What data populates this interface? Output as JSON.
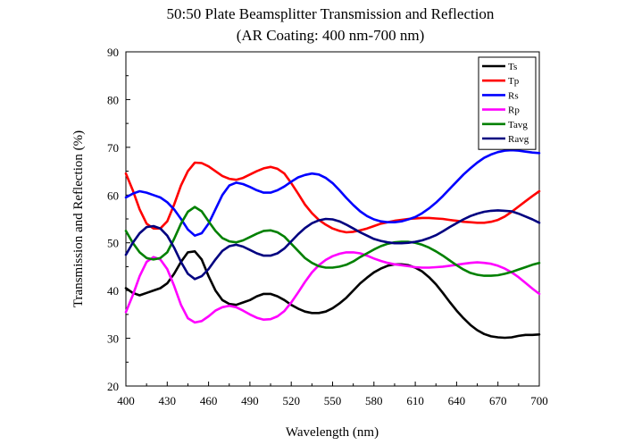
{
  "chart_data": {
    "type": "line",
    "title": "50:50 Plate Beamsplitter  Transmission and Reflection",
    "subtitle": "(AR Coating: 400 nm-700 nm)",
    "xlabel": "Wavelength (nm)",
    "ylabel": "Transmission and Reflection (%)",
    "xlim": [
      400,
      700
    ],
    "ylim": [
      20,
      90
    ],
    "xticks": [
      400,
      430,
      460,
      490,
      520,
      550,
      580,
      610,
      640,
      670,
      700
    ],
    "yticks": [
      20,
      30,
      40,
      50,
      60,
      70,
      80,
      90
    ],
    "grid": false,
    "legend_position": "top-right",
    "series": [
      {
        "name": "Ts",
        "color": "#000000",
        "x": [
          400,
          405,
          410,
          415,
          420,
          425,
          430,
          435,
          440,
          445,
          450,
          455,
          460,
          465,
          470,
          475,
          480,
          485,
          490,
          495,
          500,
          505,
          510,
          515,
          520,
          525,
          530,
          535,
          540,
          545,
          550,
          555,
          560,
          565,
          570,
          575,
          580,
          585,
          590,
          595,
          600,
          605,
          610,
          615,
          620,
          625,
          630,
          635,
          640,
          645,
          650,
          655,
          660,
          665,
          670,
          675,
          680,
          685,
          690,
          695,
          700
        ],
        "values": [
          40.5,
          39.5,
          39.0,
          39.5,
          40.0,
          40.5,
          41.5,
          43.5,
          46.0,
          48.0,
          48.2,
          46.5,
          43.0,
          40.0,
          38.0,
          37.2,
          37.0,
          37.5,
          38.0,
          38.8,
          39.3,
          39.3,
          38.8,
          38.0,
          37.0,
          36.2,
          35.6,
          35.3,
          35.3,
          35.6,
          36.3,
          37.3,
          38.5,
          40.0,
          41.5,
          42.7,
          43.8,
          44.6,
          45.2,
          45.5,
          45.5,
          45.3,
          44.8,
          44.0,
          42.8,
          41.3,
          39.5,
          37.6,
          35.8,
          34.2,
          32.8,
          31.7,
          30.9,
          30.4,
          30.2,
          30.1,
          30.2,
          30.5,
          30.7,
          30.7,
          30.8
        ]
      },
      {
        "name": "Tp",
        "color": "#ff0000",
        "x": [
          400,
          405,
          410,
          415,
          420,
          425,
          430,
          435,
          440,
          445,
          450,
          455,
          460,
          465,
          470,
          475,
          480,
          485,
          490,
          495,
          500,
          505,
          510,
          515,
          520,
          525,
          530,
          535,
          540,
          545,
          550,
          555,
          560,
          565,
          570,
          575,
          580,
          585,
          590,
          595,
          600,
          605,
          610,
          615,
          620,
          625,
          630,
          635,
          640,
          645,
          650,
          655,
          660,
          665,
          670,
          675,
          680,
          685,
          690,
          695,
          700
        ],
        "values": [
          64.5,
          61.0,
          57.0,
          54.0,
          53.0,
          53.0,
          54.5,
          58.0,
          62.0,
          65.0,
          66.8,
          66.7,
          66.0,
          65.0,
          64.0,
          63.4,
          63.2,
          63.6,
          64.3,
          65.0,
          65.6,
          65.9,
          65.5,
          64.5,
          62.5,
          60.3,
          58.0,
          56.2,
          54.8,
          53.8,
          53.0,
          52.5,
          52.2,
          52.3,
          52.6,
          53.0,
          53.5,
          54.0,
          54.3,
          54.6,
          54.8,
          55.0,
          55.1,
          55.2,
          55.2,
          55.1,
          55.0,
          54.8,
          54.6,
          54.4,
          54.3,
          54.2,
          54.2,
          54.4,
          54.8,
          55.5,
          56.5,
          57.6,
          58.7,
          59.8,
          60.8
        ]
      },
      {
        "name": "Rs",
        "color": "#0000ff",
        "x": [
          400,
          405,
          410,
          415,
          420,
          425,
          430,
          435,
          440,
          445,
          450,
          455,
          460,
          465,
          470,
          475,
          480,
          485,
          490,
          495,
          500,
          505,
          510,
          515,
          520,
          525,
          530,
          535,
          540,
          545,
          550,
          555,
          560,
          565,
          570,
          575,
          580,
          585,
          590,
          595,
          600,
          605,
          610,
          615,
          620,
          625,
          630,
          635,
          640,
          645,
          650,
          655,
          660,
          665,
          670,
          675,
          680,
          685,
          690,
          695,
          700
        ],
        "values": [
          59.5,
          60.3,
          60.8,
          60.5,
          60.0,
          59.5,
          58.5,
          57.0,
          55.0,
          52.8,
          51.5,
          52.0,
          54.0,
          57.0,
          60.0,
          62.0,
          62.6,
          62.3,
          61.7,
          61.0,
          60.5,
          60.5,
          61.0,
          61.8,
          62.8,
          63.7,
          64.2,
          64.5,
          64.3,
          63.6,
          62.5,
          61.0,
          59.4,
          57.9,
          56.6,
          55.6,
          54.9,
          54.5,
          54.3,
          54.3,
          54.5,
          54.9,
          55.4,
          56.2,
          57.2,
          58.4,
          59.8,
          61.3,
          62.8,
          64.3,
          65.6,
          66.8,
          67.8,
          68.5,
          69.0,
          69.3,
          69.4,
          69.3,
          69.1,
          68.9,
          68.8
        ]
      },
      {
        "name": "Rp",
        "color": "#ff00ff",
        "x": [
          400,
          405,
          410,
          415,
          420,
          425,
          430,
          435,
          440,
          445,
          450,
          455,
          460,
          465,
          470,
          475,
          480,
          485,
          490,
          495,
          500,
          505,
          510,
          515,
          520,
          525,
          530,
          535,
          540,
          545,
          550,
          555,
          560,
          565,
          570,
          575,
          580,
          585,
          590,
          595,
          600,
          605,
          610,
          615,
          620,
          625,
          630,
          635,
          640,
          645,
          650,
          655,
          660,
          665,
          670,
          675,
          680,
          685,
          690,
          695,
          700
        ],
        "values": [
          35.5,
          39.0,
          43.0,
          46.0,
          47.0,
          46.5,
          44.5,
          41.0,
          37.0,
          34.2,
          33.3,
          33.6,
          34.6,
          35.8,
          36.5,
          36.8,
          36.5,
          35.8,
          35.0,
          34.3,
          33.9,
          34.0,
          34.6,
          35.7,
          37.5,
          39.6,
          41.8,
          43.8,
          45.3,
          46.4,
          47.2,
          47.7,
          48.0,
          48.0,
          47.8,
          47.3,
          46.7,
          46.2,
          45.8,
          45.5,
          45.3,
          45.1,
          44.9,
          44.8,
          44.8,
          44.9,
          45.0,
          45.2,
          45.4,
          45.6,
          45.8,
          45.9,
          45.8,
          45.6,
          45.2,
          44.6,
          43.8,
          42.8,
          41.6,
          40.4,
          39.3
        ]
      },
      {
        "name": "Tavg",
        "color": "#008000",
        "x": [
          400,
          405,
          410,
          415,
          420,
          425,
          430,
          435,
          440,
          445,
          450,
          455,
          460,
          465,
          470,
          475,
          480,
          485,
          490,
          495,
          500,
          505,
          510,
          515,
          520,
          525,
          530,
          535,
          540,
          545,
          550,
          555,
          560,
          565,
          570,
          575,
          580,
          585,
          590,
          595,
          600,
          605,
          610,
          615,
          620,
          625,
          630,
          635,
          640,
          645,
          650,
          655,
          660,
          665,
          670,
          675,
          680,
          685,
          690,
          695,
          700
        ],
        "values": [
          52.5,
          50.0,
          48.0,
          46.8,
          46.5,
          46.8,
          48.0,
          50.8,
          54.0,
          56.5,
          57.5,
          56.6,
          54.5,
          52.5,
          51.0,
          50.3,
          50.1,
          50.5,
          51.2,
          51.9,
          52.5,
          52.6,
          52.2,
          51.3,
          49.8,
          48.3,
          46.8,
          45.8,
          45.1,
          44.8,
          44.8,
          45.0,
          45.4,
          46.1,
          47.0,
          47.8,
          48.6,
          49.3,
          49.8,
          50.1,
          50.2,
          50.2,
          50.0,
          49.6,
          49.0,
          48.2,
          47.3,
          46.3,
          45.3,
          44.4,
          43.7,
          43.3,
          43.1,
          43.1,
          43.2,
          43.5,
          43.9,
          44.4,
          44.9,
          45.4,
          45.8
        ]
      },
      {
        "name": "Ravg",
        "color": "#000080",
        "x": [
          400,
          405,
          410,
          415,
          420,
          425,
          430,
          435,
          440,
          445,
          450,
          455,
          460,
          465,
          470,
          475,
          480,
          485,
          490,
          495,
          500,
          505,
          510,
          515,
          520,
          525,
          530,
          535,
          540,
          545,
          550,
          555,
          560,
          565,
          570,
          575,
          580,
          585,
          590,
          595,
          600,
          605,
          610,
          615,
          620,
          625,
          630,
          635,
          640,
          645,
          650,
          655,
          660,
          665,
          670,
          675,
          680,
          685,
          690,
          695,
          700
        ],
        "values": [
          47.5,
          50.0,
          52.0,
          53.3,
          53.5,
          53.0,
          51.5,
          49.0,
          46.0,
          43.5,
          42.4,
          43.0,
          44.5,
          46.5,
          48.3,
          49.3,
          49.6,
          49.2,
          48.5,
          47.8,
          47.3,
          47.3,
          47.8,
          48.8,
          50.3,
          51.8,
          53.1,
          54.1,
          54.7,
          55.0,
          54.9,
          54.5,
          53.8,
          53.0,
          52.2,
          51.5,
          50.8,
          50.4,
          50.1,
          49.9,
          49.9,
          50.0,
          50.2,
          50.5,
          51.0,
          51.6,
          52.4,
          53.3,
          54.1,
          54.9,
          55.6,
          56.1,
          56.5,
          56.7,
          56.8,
          56.7,
          56.6,
          56.1,
          55.5,
          54.9,
          54.2
        ]
      }
    ]
  }
}
